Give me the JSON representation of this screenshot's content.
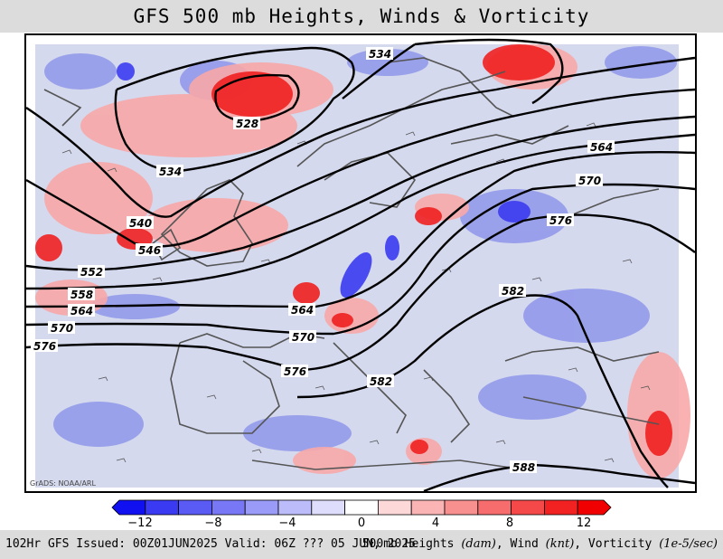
{
  "title": "GFS 500 mb Heights, Winds & Vorticity",
  "credit": "GrADS: NOAA/ARL",
  "footer": {
    "issued": "102Hr GFS Issued: 00Z01JUN2025 Valid: 06Z ??? 05 JUN, 2025",
    "params_prefix": "500mb Heights ",
    "heights_unit": "(dam)",
    "wind_label": ", Wind ",
    "wind_unit": "(knt)",
    "vort_label": ", Vorticity ",
    "vort_unit": "(1e-5/sec)"
  },
  "colorbar": {
    "tick_labels": [
      "−12",
      "−8",
      "−4",
      "0",
      "4",
      "8",
      "12"
    ],
    "colors": [
      "#1010f0",
      "#3a3af2",
      "#5a5af4",
      "#7878f6",
      "#9a9af8",
      "#bcbcfa",
      "#dedefc",
      "#ffffff",
      "#fdd8d8",
      "#fbb4b4",
      "#f99090",
      "#f76c6c",
      "#f54848",
      "#f32222",
      "#f00000"
    ]
  },
  "contour_labels": [
    "534",
    "528",
    "534",
    "564",
    "570",
    "540",
    "546",
    "576",
    "552",
    "558",
    "564",
    "564",
    "570",
    "570",
    "576",
    "582",
    "576",
    "582",
    "588"
  ],
  "colors": {
    "land": "#d9def0",
    "coast": "#555555",
    "contour": "#000000",
    "positive": "#f00000",
    "negative": "#1010f0"
  }
}
